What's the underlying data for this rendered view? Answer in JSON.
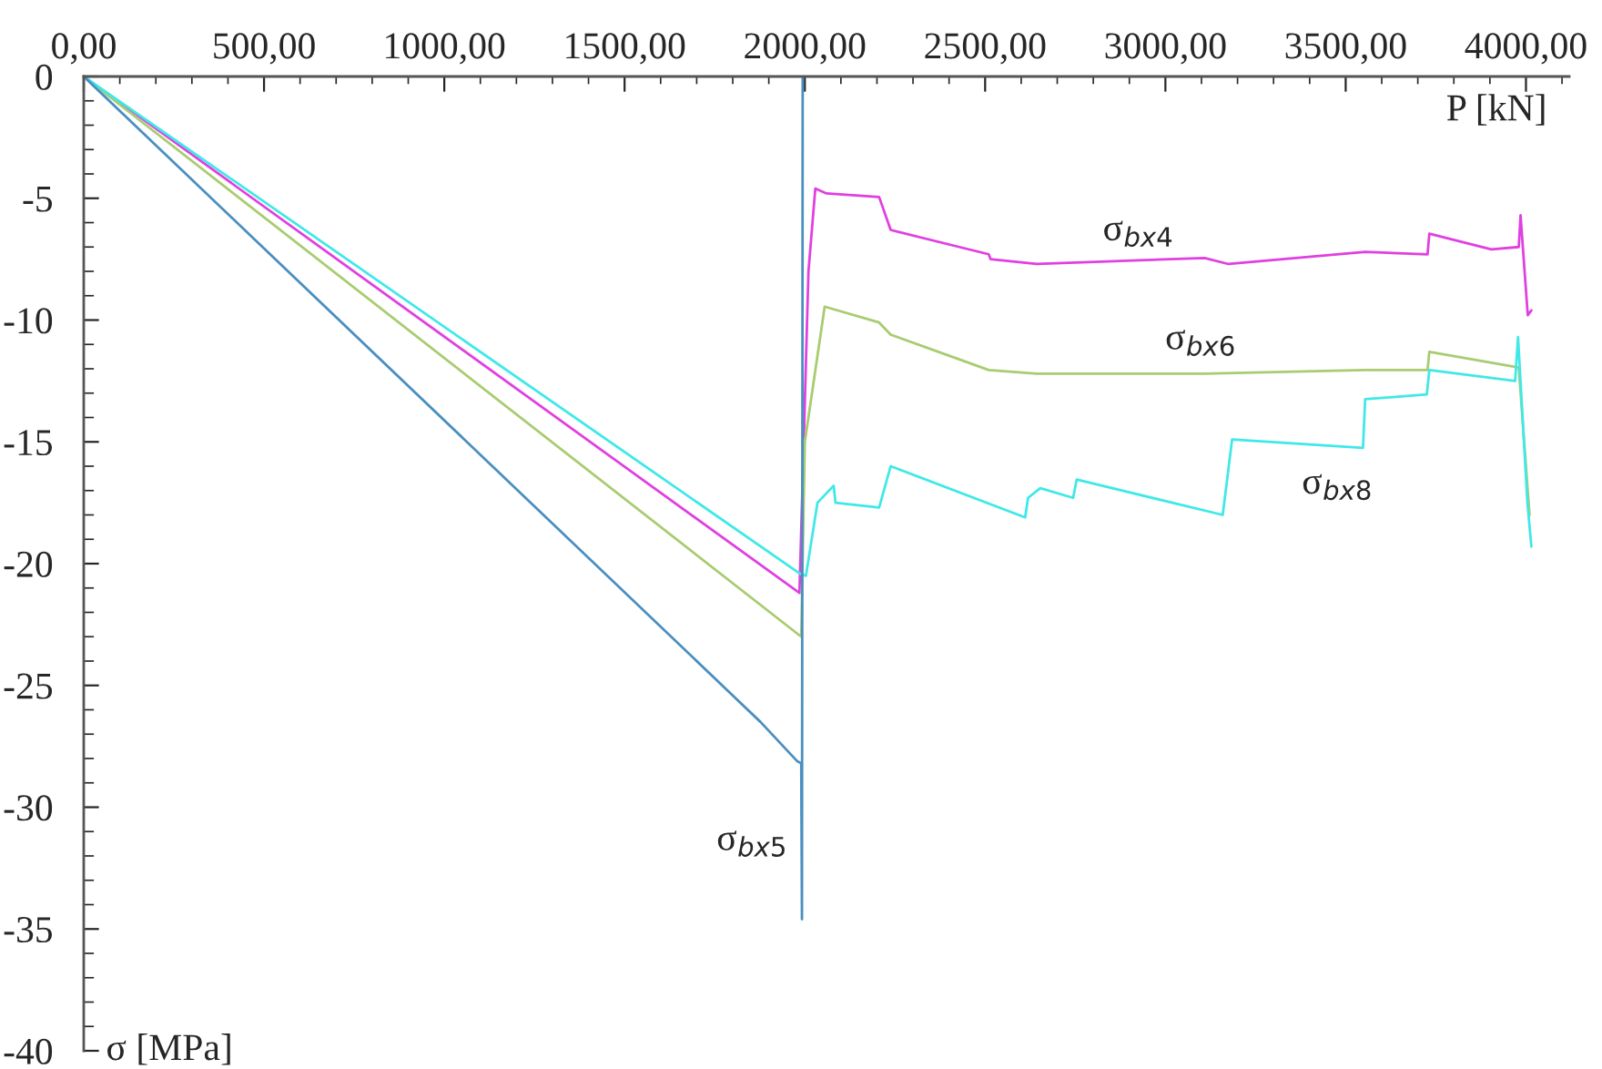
{
  "chart_data": {
    "type": "line",
    "xlabel": "P [kN]",
    "ylabel": "σ [MPa]",
    "xlim": [
      0,
      4120
    ],
    "ylim": [
      -40,
      0
    ],
    "xticks": [
      {
        "value": 0,
        "label": "0,00"
      },
      {
        "value": 500,
        "label": "500,00"
      },
      {
        "value": 1000,
        "label": "1000,00"
      },
      {
        "value": 1500,
        "label": "1500,00"
      },
      {
        "value": 2000,
        "label": "2000,00"
      },
      {
        "value": 2500,
        "label": "2500,00"
      },
      {
        "value": 3000,
        "label": "3000,00"
      },
      {
        "value": 3500,
        "label": "3500,00"
      },
      {
        "value": 4000,
        "label": "4000,00"
      }
    ],
    "yticks": [
      0,
      -5,
      -10,
      -15,
      -20,
      -25,
      -30,
      -35,
      -40
    ],
    "grid": false,
    "legend": false,
    "series": [
      {
        "name": "σ$_{bx4}$",
        "color": "#e040e0",
        "x": [
          0,
          1985,
          1995,
          2010,
          2029,
          2060,
          2206,
          2238,
          2510,
          2515,
          2643,
          3109,
          3175,
          3554,
          3727,
          3732,
          3904,
          3980,
          3985,
          4005,
          4015
        ],
        "values": [
          0,
          -21.2,
          -16,
          -8,
          -4.6,
          -4.8,
          -4.95,
          -6.3,
          -7.3,
          -7.5,
          -7.7,
          -7.45,
          -7.7,
          -7.2,
          -7.3,
          -6.45,
          -7.1,
          -7.0,
          -5.7,
          -9.8,
          -9.6
        ]
      },
      {
        "name": "σ$_{bx6}$",
        "color": "#a8cc70",
        "x": [
          0,
          1990,
          2000,
          2055,
          2206,
          2238,
          2510,
          2643,
          3109,
          3554,
          3727,
          3732,
          3980,
          3995,
          4010
        ],
        "values": [
          0,
          -23,
          -15,
          -9.45,
          -10.1,
          -10.6,
          -12.05,
          -12.2,
          -12.2,
          -12.05,
          -12.05,
          -11.3,
          -11.95,
          -15,
          -18
        ]
      },
      {
        "name": "σ$_{bx8}$",
        "color": "#40e8e8",
        "x": [
          0,
          1985,
          2003,
          2035,
          2080,
          2085,
          2206,
          2238,
          2611,
          2619,
          2653,
          2744,
          2754,
          3159,
          3185,
          3548,
          3554,
          3725,
          3732,
          3970,
          3978,
          4004,
          4015
        ],
        "values": [
          0,
          -20.4,
          -20.5,
          -17.5,
          -16.8,
          -17.5,
          -17.7,
          -16.0,
          -18.1,
          -17.3,
          -16.9,
          -17.3,
          -16.55,
          -18.0,
          -14.9,
          -15.25,
          -13.25,
          -13.05,
          -12.05,
          -12.5,
          -10.7,
          -17.5,
          -19.3
        ]
      },
      {
        "name": "σ$_{bx5}$",
        "color": "#4a8fc0",
        "x": [
          0,
          1877,
          1978,
          1990,
          1992,
          1994
        ],
        "values": [
          0,
          -26.5,
          -28.1,
          -28.2,
          -34.6,
          0
        ]
      }
    ]
  }
}
